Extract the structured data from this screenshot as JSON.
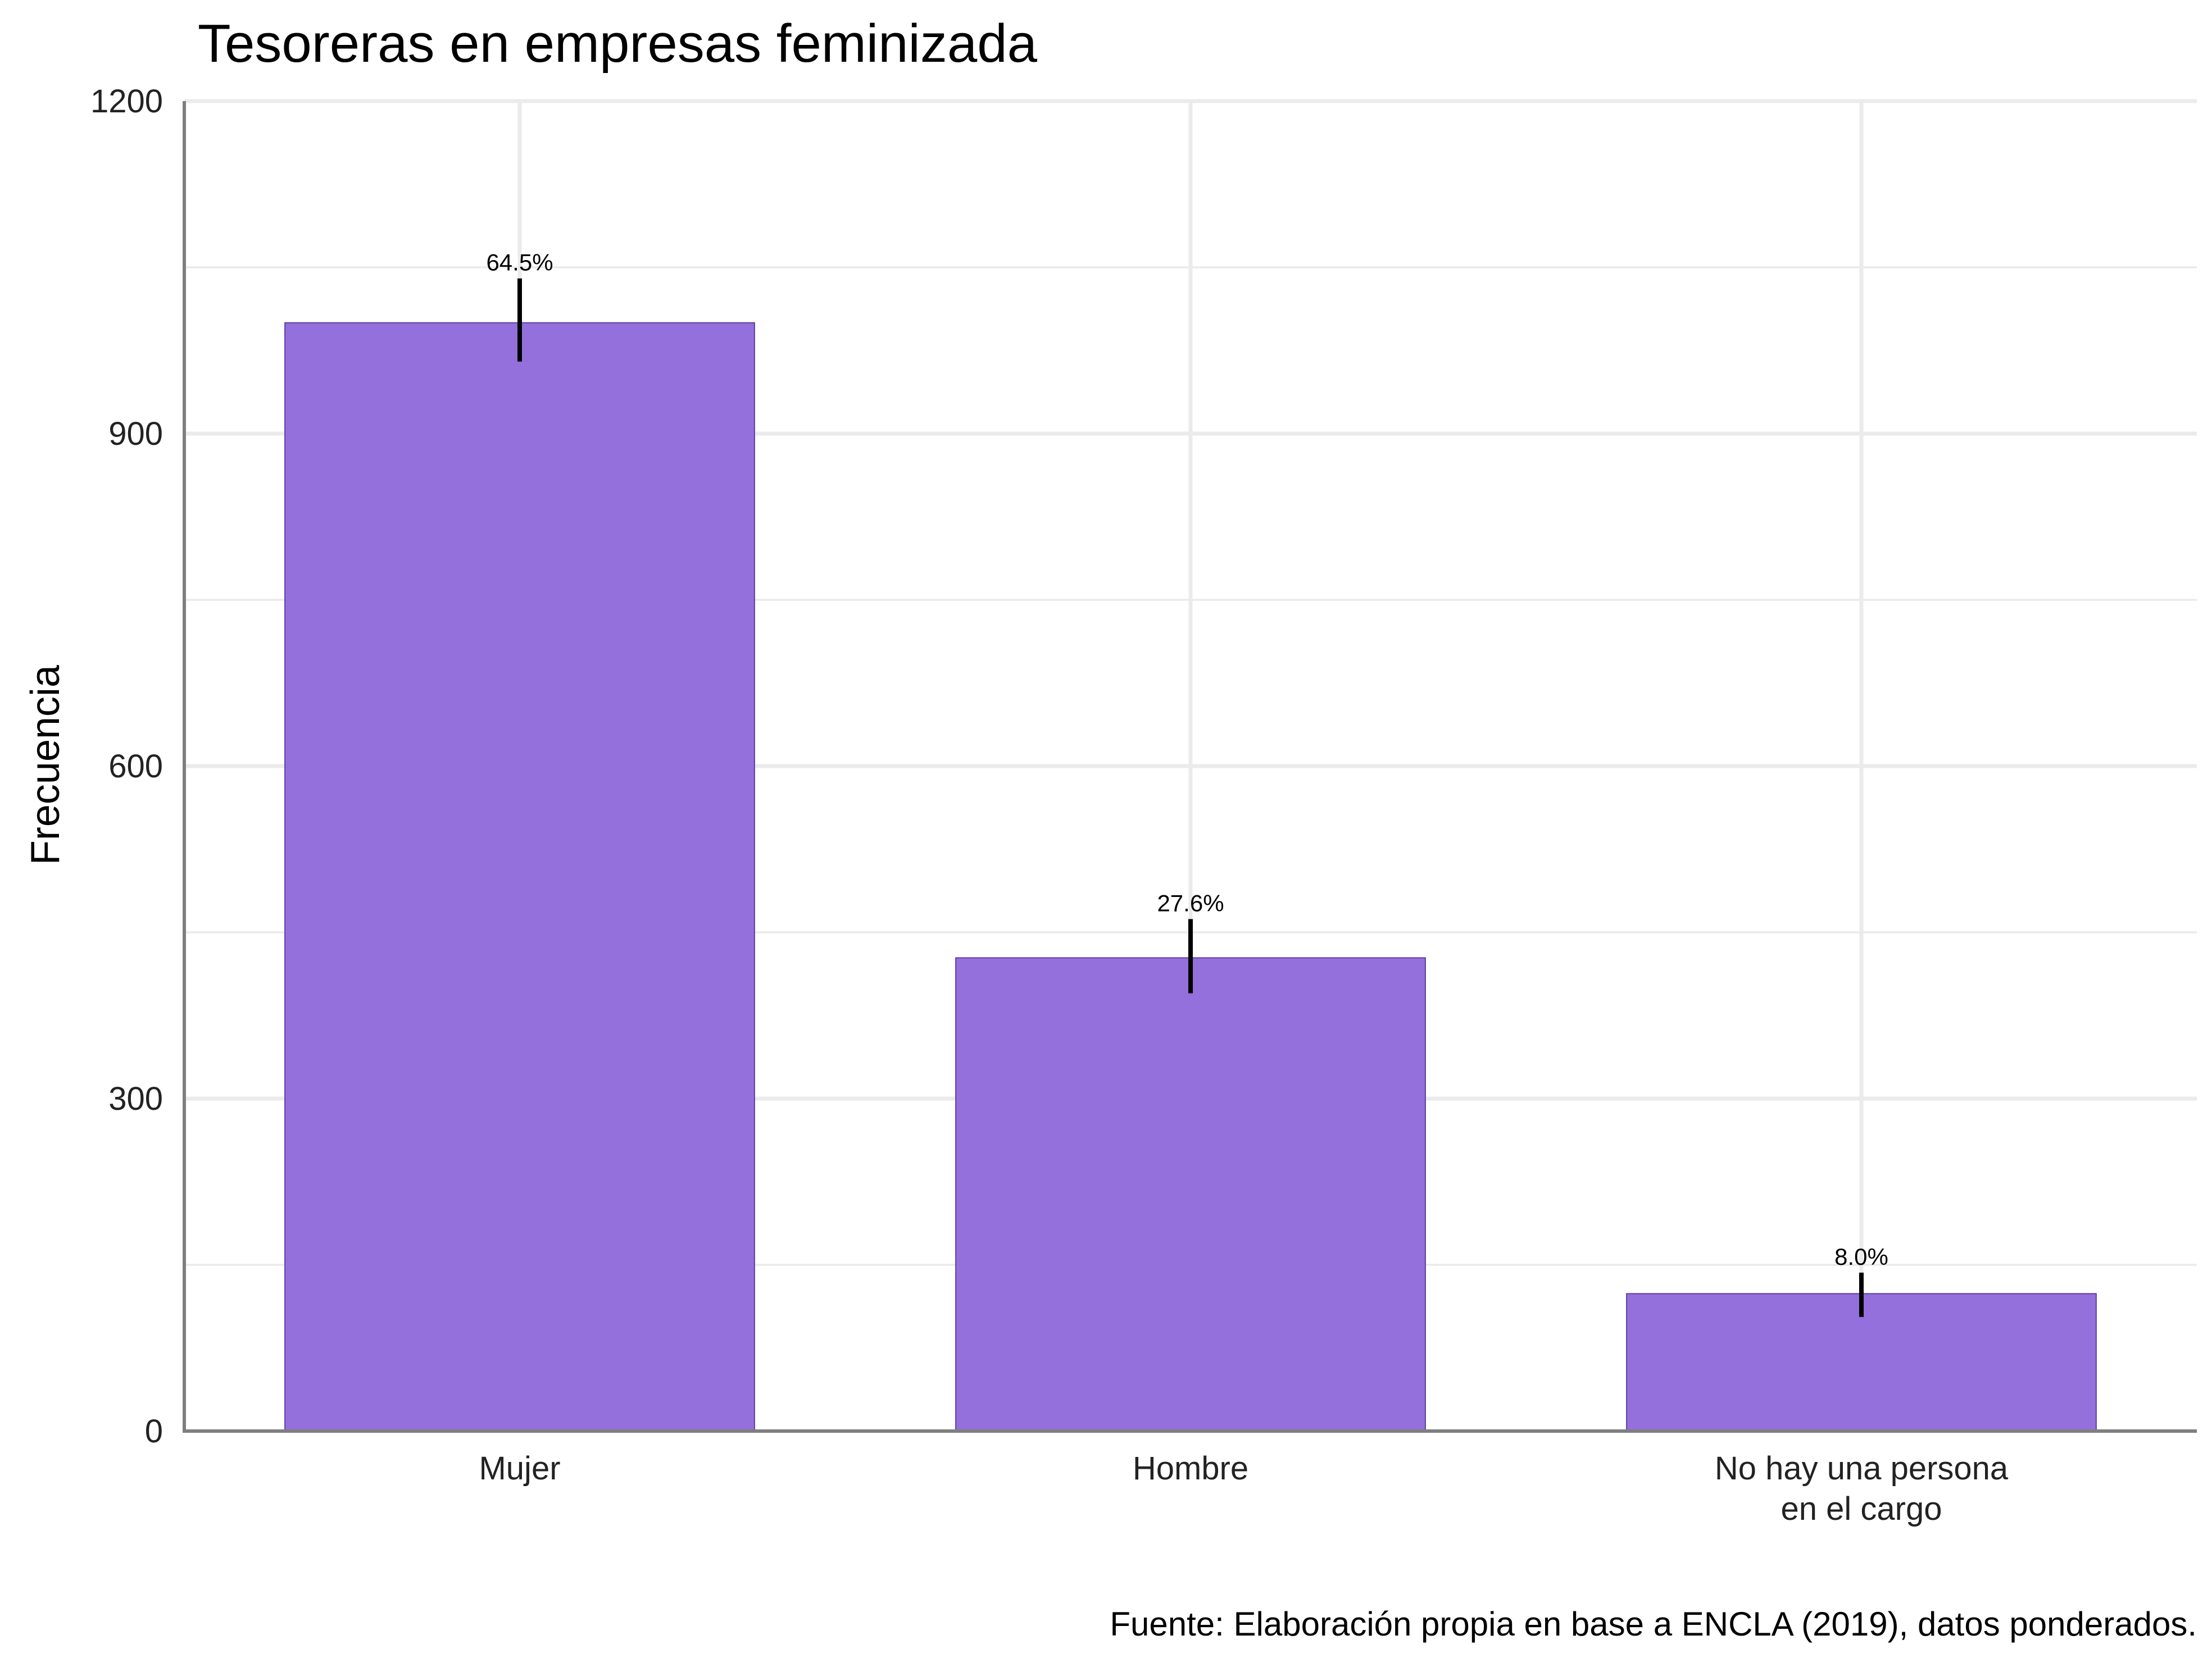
{
  "chart_data": {
    "type": "bar",
    "title": "Tesoreras en empresas feminizada",
    "xlabel": "",
    "ylabel": "Frecuencia",
    "caption": "Fuente: Elaboración propia en base a ENCLA (2019), datos ponderados.",
    "categories": [
      [
        "Mujer"
      ],
      [
        "Hombre"
      ],
      [
        "No hay una persona",
        "en el cargo"
      ]
    ],
    "values": [
      1000,
      427,
      124
    ],
    "error_low": [
      965,
      395,
      103
    ],
    "error_high": [
      1040,
      462,
      143
    ],
    "labels": [
      "64.5%",
      "27.6%",
      "8.0%"
    ],
    "ylim": [
      0,
      1200
    ],
    "yticks": [
      0,
      300,
      600,
      900,
      1200
    ],
    "ytick_labels": [
      "0",
      "300",
      "600",
      "900",
      "1200"
    ],
    "grid": true,
    "colors": {
      "bar_fill": "#9370DB",
      "bar_stroke": "#5e3fa8",
      "error_bar": "#000000"
    }
  }
}
